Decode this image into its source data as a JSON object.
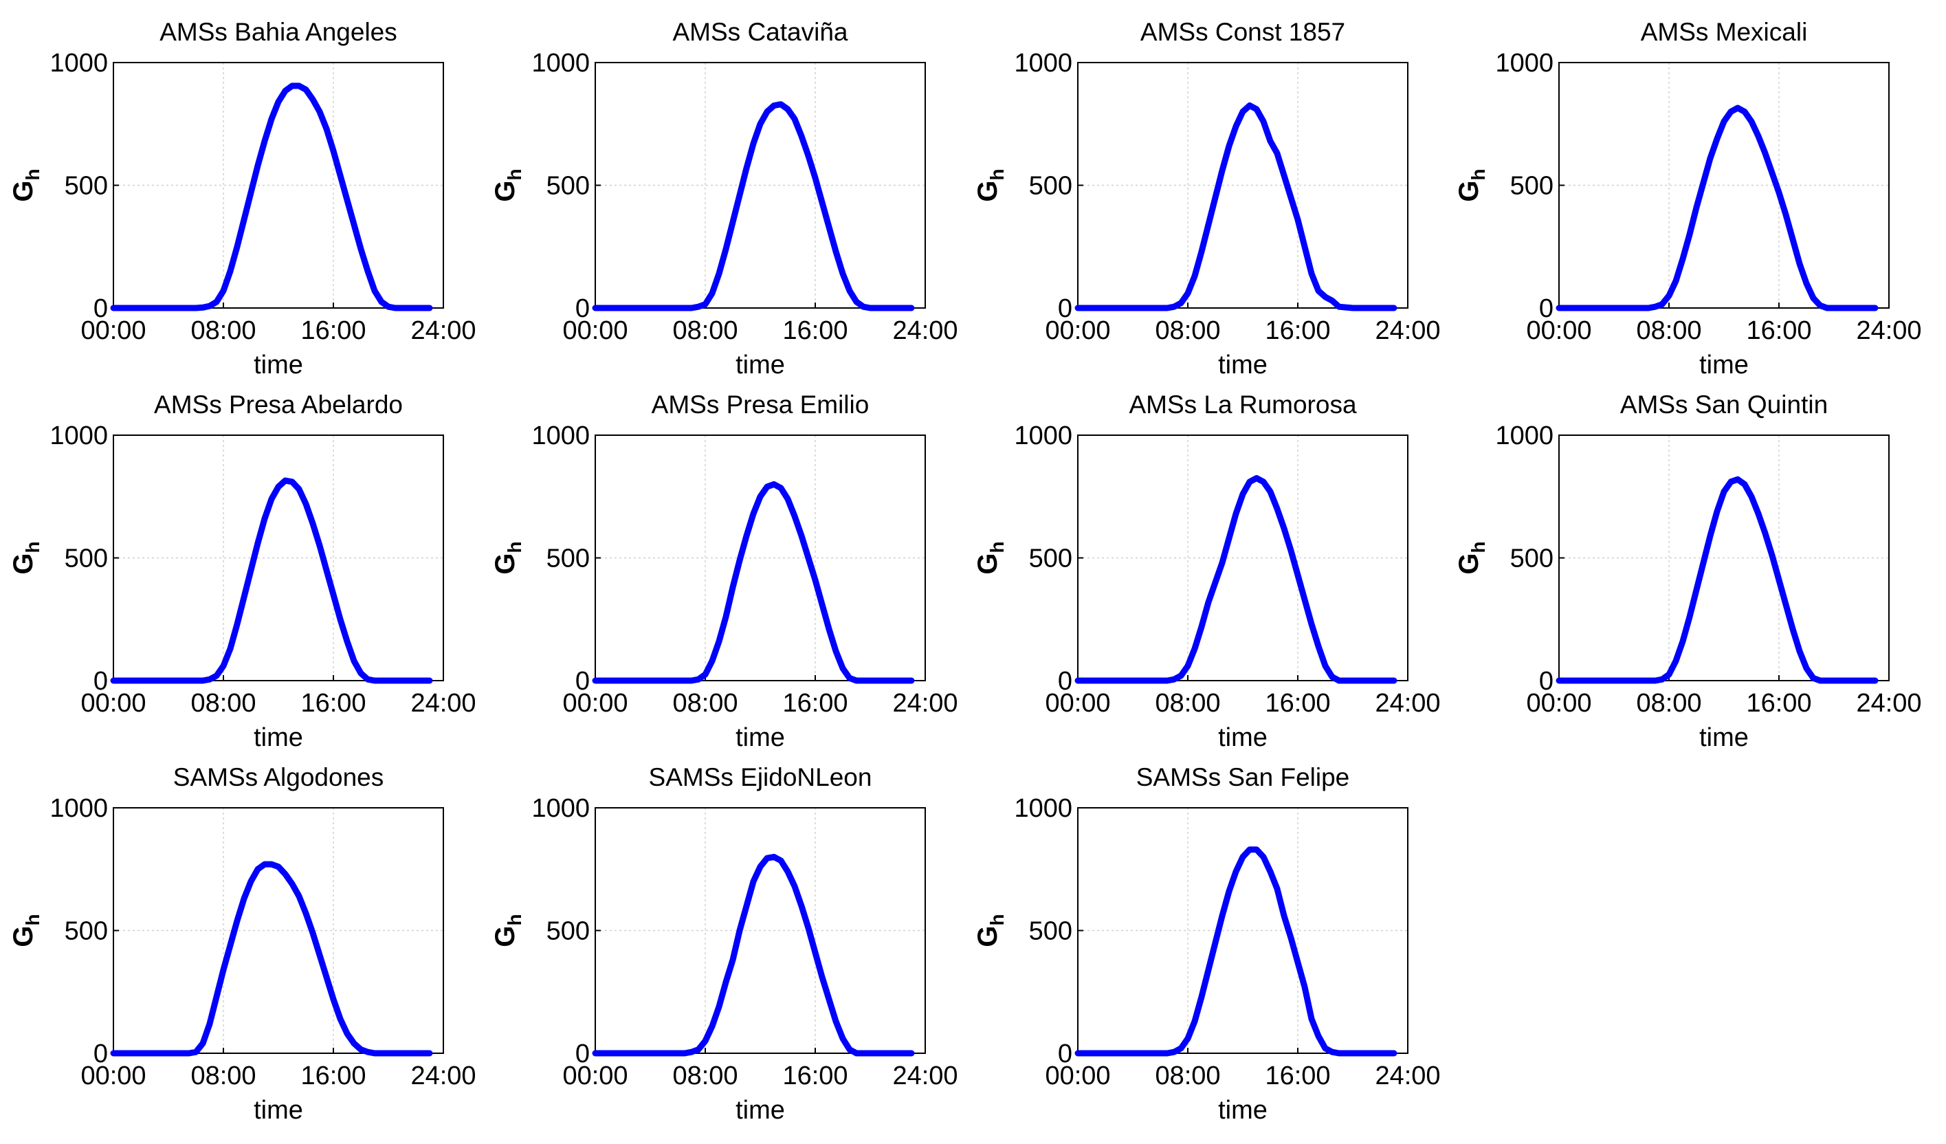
{
  "figure": {
    "series_color": "#0000ff",
    "grid_color": "#d0d0d0"
  },
  "chart_data": [
    {
      "type": "line",
      "title": "AMSs Bahia Angeles",
      "xlabel": "time",
      "ylabel": "G",
      "ylabel_sub": "h",
      "xlim": [
        "00:00",
        "24:00"
      ],
      "xticks": [
        "00:00",
        "08:00",
        "16:00",
        "24:00"
      ],
      "ylim": [
        0,
        1000
      ],
      "yticks": [
        0,
        500,
        1000
      ],
      "grid": true,
      "x": [
        "00:00",
        "06:00",
        "06:30",
        "07:00",
        "07:30",
        "08:00",
        "08:30",
        "09:00",
        "09:30",
        "10:00",
        "10:30",
        "11:00",
        "11:30",
        "12:00",
        "12:30",
        "13:00",
        "13:30",
        "14:00",
        "14:30",
        "15:00",
        "15:30",
        "16:00",
        "16:30",
        "17:00",
        "17:30",
        "18:00",
        "18:30",
        "19:00",
        "19:30",
        "20:00",
        "20:30",
        "21:00",
        "22:00",
        "23:00"
      ],
      "values": [
        0,
        0,
        2,
        8,
        25,
        70,
        150,
        250,
        360,
        470,
        580,
        680,
        770,
        840,
        885,
        905,
        905,
        890,
        850,
        800,
        730,
        640,
        540,
        440,
        340,
        240,
        150,
        70,
        25,
        5,
        0,
        0,
        0,
        0
      ]
    },
    {
      "type": "line",
      "title": "AMSs Cataviña",
      "xlabel": "time",
      "ylabel": "G",
      "ylabel_sub": "h",
      "xlim": [
        "00:00",
        "24:00"
      ],
      "xticks": [
        "00:00",
        "08:00",
        "16:00",
        "24:00"
      ],
      "ylim": [
        0,
        1000
      ],
      "yticks": [
        0,
        500,
        1000
      ],
      "grid": true,
      "x": [
        "00:00",
        "07:00",
        "07:30",
        "08:00",
        "08:30",
        "09:00",
        "09:30",
        "10:00",
        "10:30",
        "11:00",
        "11:30",
        "12:00",
        "12:30",
        "13:00",
        "13:30",
        "14:00",
        "14:30",
        "15:00",
        "15:30",
        "16:00",
        "16:30",
        "17:00",
        "17:30",
        "18:00",
        "18:30",
        "19:00",
        "19:30",
        "20:00",
        "21:00",
        "23:00"
      ],
      "values": [
        0,
        0,
        5,
        15,
        60,
        140,
        240,
        350,
        460,
        570,
        670,
        750,
        800,
        825,
        830,
        810,
        770,
        700,
        620,
        530,
        430,
        330,
        230,
        140,
        70,
        25,
        5,
        0,
        0,
        0
      ]
    },
    {
      "type": "line",
      "title": "AMSs Const 1857",
      "xlabel": "time",
      "ylabel": "G",
      "ylabel_sub": "h",
      "xlim": [
        "00:00",
        "24:00"
      ],
      "xticks": [
        "00:00",
        "08:00",
        "16:00",
        "24:00"
      ],
      "ylim": [
        0,
        1000
      ],
      "yticks": [
        0,
        500,
        1000
      ],
      "grid": true,
      "x": [
        "00:00",
        "06:30",
        "07:00",
        "07:30",
        "08:00",
        "08:30",
        "09:00",
        "09:30",
        "10:00",
        "10:30",
        "11:00",
        "11:30",
        "12:00",
        "12:30",
        "13:00",
        "13:30",
        "14:00",
        "14:30",
        "15:00",
        "15:30",
        "16:00",
        "16:30",
        "17:00",
        "17:30",
        "18:00",
        "18:30",
        "19:00",
        "20:00",
        "23:00"
      ],
      "values": [
        0,
        0,
        5,
        20,
        60,
        130,
        230,
        340,
        450,
        560,
        660,
        740,
        800,
        825,
        810,
        760,
        680,
        630,
        540,
        450,
        360,
        250,
        140,
        70,
        45,
        30,
        5,
        0,
        0
      ]
    },
    {
      "type": "line",
      "title": "AMSs Mexicali",
      "xlabel": "time",
      "ylabel": "G",
      "ylabel_sub": "h",
      "xlim": [
        "00:00",
        "24:00"
      ],
      "xticks": [
        "00:00",
        "08:00",
        "16:00",
        "24:00"
      ],
      "ylim": [
        0,
        1000
      ],
      "yticks": [
        0,
        500,
        1000
      ],
      "grid": true,
      "x": [
        "00:00",
        "06:30",
        "07:00",
        "07:30",
        "08:00",
        "08:30",
        "09:00",
        "09:30",
        "10:00",
        "10:30",
        "11:00",
        "11:30",
        "12:00",
        "12:30",
        "13:00",
        "13:30",
        "14:00",
        "14:30",
        "15:00",
        "15:30",
        "16:00",
        "16:30",
        "17:00",
        "17:30",
        "18:00",
        "18:30",
        "19:00",
        "19:30",
        "20:00",
        "23:00"
      ],
      "values": [
        0,
        0,
        5,
        15,
        50,
        110,
        200,
        300,
        410,
        510,
        610,
        690,
        760,
        800,
        815,
        800,
        760,
        700,
        630,
        550,
        470,
        380,
        280,
        180,
        100,
        40,
        10,
        0,
        0,
        0
      ]
    },
    {
      "type": "line",
      "title": "AMSs Presa Abelardo",
      "xlabel": "time",
      "ylabel": "G",
      "ylabel_sub": "h",
      "xlim": [
        "00:00",
        "24:00"
      ],
      "xticks": [
        "00:00",
        "08:00",
        "16:00",
        "24:00"
      ],
      "ylim": [
        0,
        1000
      ],
      "yticks": [
        0,
        500,
        1000
      ],
      "grid": true,
      "x": [
        "00:00",
        "06:30",
        "07:00",
        "07:30",
        "08:00",
        "08:30",
        "09:00",
        "09:30",
        "10:00",
        "10:30",
        "11:00",
        "11:30",
        "12:00",
        "12:30",
        "13:00",
        "13:30",
        "14:00",
        "14:30",
        "15:00",
        "15:30",
        "16:00",
        "16:30",
        "17:00",
        "17:30",
        "18:00",
        "18:30",
        "19:00",
        "20:00",
        "23:00"
      ],
      "values": [
        0,
        0,
        5,
        20,
        60,
        130,
        230,
        340,
        450,
        560,
        660,
        740,
        790,
        815,
        810,
        780,
        720,
        640,
        550,
        450,
        350,
        250,
        160,
        80,
        30,
        5,
        0,
        0,
        0
      ]
    },
    {
      "type": "line",
      "title": "AMSs Presa Emilio",
      "xlabel": "time",
      "ylabel": "G",
      "ylabel_sub": "h",
      "xlim": [
        "00:00",
        "24:00"
      ],
      "xticks": [
        "00:00",
        "08:00",
        "16:00",
        "24:00"
      ],
      "ylim": [
        0,
        1000
      ],
      "yticks": [
        0,
        500,
        1000
      ],
      "grid": true,
      "x": [
        "00:00",
        "07:00",
        "07:30",
        "08:00",
        "08:30",
        "09:00",
        "09:30",
        "10:00",
        "10:30",
        "11:00",
        "11:30",
        "12:00",
        "12:30",
        "13:00",
        "13:30",
        "14:00",
        "14:30",
        "15:00",
        "15:30",
        "16:00",
        "16:30",
        "17:00",
        "17:30",
        "18:00",
        "18:30",
        "19:00",
        "19:30",
        "20:00",
        "23:00"
      ],
      "values": [
        0,
        0,
        5,
        25,
        80,
        160,
        260,
        380,
        490,
        590,
        680,
        750,
        790,
        800,
        785,
        740,
        670,
        590,
        500,
        410,
        310,
        210,
        120,
        50,
        10,
        0,
        0,
        0,
        0
      ]
    },
    {
      "type": "line",
      "title": "AMSs La Rumorosa",
      "xlabel": "time",
      "ylabel": "G",
      "ylabel_sub": "h",
      "xlim": [
        "00:00",
        "24:00"
      ],
      "xticks": [
        "00:00",
        "08:00",
        "16:00",
        "24:00"
      ],
      "ylim": [
        0,
        1000
      ],
      "yticks": [
        0,
        500,
        1000
      ],
      "grid": true,
      "x": [
        "00:00",
        "06:30",
        "07:00",
        "07:30",
        "08:00",
        "08:30",
        "09:00",
        "09:30",
        "10:00",
        "10:30",
        "11:00",
        "11:30",
        "12:00",
        "12:30",
        "13:00",
        "13:30",
        "14:00",
        "14:30",
        "15:00",
        "15:30",
        "16:00",
        "16:30",
        "17:00",
        "17:30",
        "18:00",
        "18:30",
        "19:00",
        "20:00",
        "23:00"
      ],
      "values": [
        0,
        0,
        5,
        20,
        60,
        130,
        220,
        320,
        400,
        480,
        580,
        680,
        760,
        810,
        825,
        810,
        770,
        700,
        620,
        530,
        430,
        330,
        230,
        140,
        60,
        15,
        0,
        0,
        0
      ]
    },
    {
      "type": "line",
      "title": "AMSs San Quintin",
      "xlabel": "time",
      "ylabel": "G",
      "ylabel_sub": "h",
      "xlim": [
        "00:00",
        "24:00"
      ],
      "xticks": [
        "00:00",
        "08:00",
        "16:00",
        "24:00"
      ],
      "ylim": [
        0,
        1000
      ],
      "yticks": [
        0,
        500,
        1000
      ],
      "grid": true,
      "x": [
        "00:00",
        "07:00",
        "07:30",
        "08:00",
        "08:30",
        "09:00",
        "09:30",
        "10:00",
        "10:30",
        "11:00",
        "11:30",
        "12:00",
        "12:30",
        "13:00",
        "13:30",
        "14:00",
        "14:30",
        "15:00",
        "15:30",
        "16:00",
        "16:30",
        "17:00",
        "17:30",
        "18:00",
        "18:30",
        "19:00",
        "19:30",
        "20:00",
        "23:00"
      ],
      "values": [
        0,
        0,
        5,
        25,
        80,
        160,
        260,
        370,
        480,
        590,
        690,
        770,
        810,
        820,
        800,
        750,
        680,
        600,
        510,
        410,
        310,
        210,
        120,
        50,
        10,
        0,
        0,
        0,
        0
      ]
    },
    {
      "type": "line",
      "title": "SAMSs Algodones",
      "xlabel": "time",
      "ylabel": "G",
      "ylabel_sub": "h",
      "xlim": [
        "00:00",
        "24:00"
      ],
      "xticks": [
        "00:00",
        "08:00",
        "16:00",
        "24:00"
      ],
      "ylim": [
        0,
        1000
      ],
      "yticks": [
        0,
        500,
        1000
      ],
      "grid": true,
      "x": [
        "00:00",
        "05:30",
        "06:00",
        "06:30",
        "07:00",
        "07:30",
        "08:00",
        "08:30",
        "09:00",
        "09:30",
        "10:00",
        "10:30",
        "11:00",
        "11:30",
        "12:00",
        "12:30",
        "13:00",
        "13:30",
        "14:00",
        "14:30",
        "15:00",
        "15:30",
        "16:00",
        "16:30",
        "17:00",
        "17:30",
        "18:00",
        "18:30",
        "19:00",
        "19:30",
        "20:00",
        "23:00"
      ],
      "values": [
        0,
        0,
        5,
        40,
        120,
        230,
        340,
        440,
        540,
        630,
        700,
        750,
        770,
        770,
        760,
        730,
        690,
        640,
        570,
        490,
        400,
        310,
        220,
        140,
        80,
        40,
        15,
        5,
        0,
        0,
        0,
        0
      ]
    },
    {
      "type": "line",
      "title": "SAMSs EjidoNLeon",
      "xlabel": "time",
      "ylabel": "G",
      "ylabel_sub": "h",
      "xlim": [
        "00:00",
        "24:00"
      ],
      "xticks": [
        "00:00",
        "08:00",
        "16:00",
        "24:00"
      ],
      "ylim": [
        0,
        1000
      ],
      "yticks": [
        0,
        500,
        1000
      ],
      "grid": true,
      "x": [
        "00:00",
        "06:30",
        "07:00",
        "07:30",
        "08:00",
        "08:30",
        "09:00",
        "09:30",
        "10:00",
        "10:30",
        "11:00",
        "11:30",
        "12:00",
        "12:30",
        "13:00",
        "13:30",
        "14:00",
        "14:30",
        "15:00",
        "15:30",
        "16:00",
        "16:30",
        "17:00",
        "17:30",
        "18:00",
        "18:30",
        "19:00",
        "19:30",
        "20:00",
        "23:00"
      ],
      "values": [
        0,
        0,
        5,
        15,
        50,
        110,
        190,
        290,
        380,
        500,
        600,
        700,
        760,
        795,
        800,
        785,
        740,
        680,
        600,
        510,
        410,
        310,
        220,
        130,
        60,
        15,
        0,
        0,
        0,
        0
      ]
    },
    {
      "type": "line",
      "title": "SAMSs San Felipe",
      "xlabel": "time",
      "ylabel": "G",
      "ylabel_sub": "h",
      "xlim": [
        "00:00",
        "24:00"
      ],
      "xticks": [
        "00:00",
        "08:00",
        "16:00",
        "24:00"
      ],
      "ylim": [
        0,
        1000
      ],
      "yticks": [
        0,
        500,
        1000
      ],
      "grid": true,
      "x": [
        "00:00",
        "06:30",
        "07:00",
        "07:30",
        "08:00",
        "08:30",
        "09:00",
        "09:30",
        "10:00",
        "10:30",
        "11:00",
        "11:30",
        "12:00",
        "12:30",
        "13:00",
        "13:30",
        "14:00",
        "14:30",
        "15:00",
        "15:30",
        "16:00",
        "16:30",
        "17:00",
        "17:30",
        "18:00",
        "18:30",
        "19:00",
        "20:00",
        "23:00"
      ],
      "values": [
        0,
        0,
        5,
        20,
        60,
        130,
        230,
        340,
        450,
        560,
        660,
        740,
        800,
        830,
        830,
        800,
        740,
        670,
        560,
        470,
        370,
        270,
        140,
        70,
        20,
        5,
        0,
        0,
        0
      ]
    }
  ]
}
